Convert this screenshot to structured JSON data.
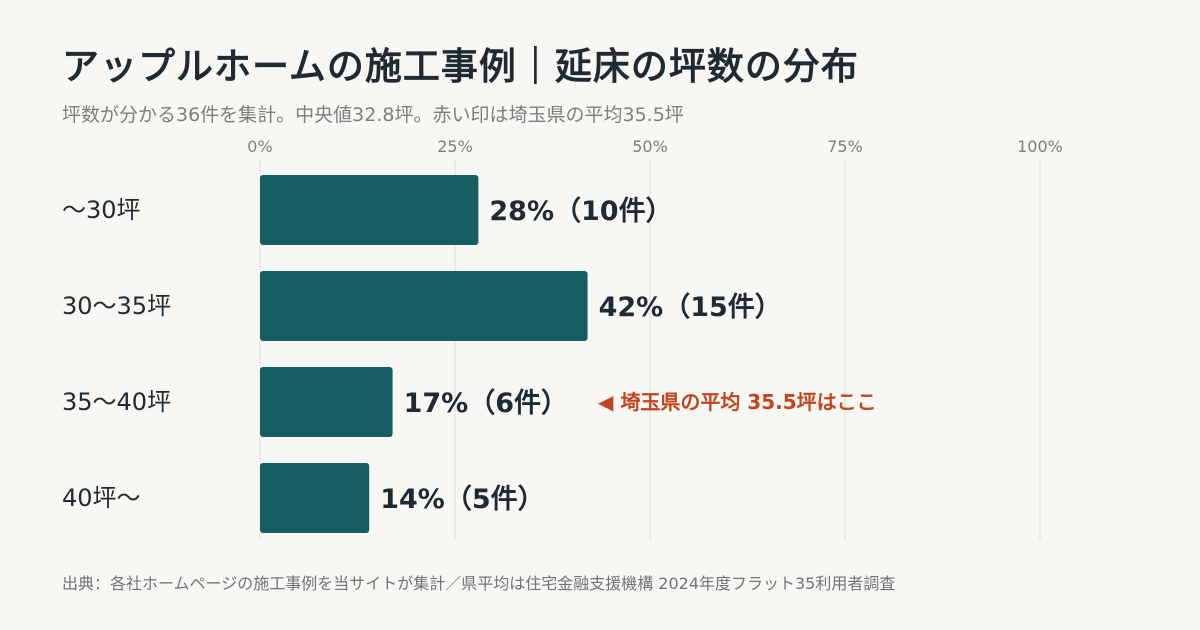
{
  "title": "アップルホームの施工事例｜延床の坪数の分布",
  "subtitle": "坪数が分かる36件を集計。中央値32.8坪。赤い印は埼玉県の平均35.5坪",
  "footer": "出典：各社ホームページの施工事例を当サイトが集計／県平均は住宅金融支援機構 2024年度フラット35利用者調査",
  "colors": {
    "bar": "#175e63",
    "accent": "#c0461f",
    "grid": "#dedcd6",
    "tick": "#7a7f84",
    "label": "#1f2a33"
  },
  "chart_data": {
    "type": "bar",
    "orientation": "horizontal",
    "categories": [
      "〜30坪",
      "30〜35坪",
      "35〜40坪",
      "40坪〜"
    ],
    "values": [
      28,
      42,
      17,
      14
    ],
    "counts": [
      10,
      15,
      6,
      5
    ],
    "data_labels": [
      "28%（10件）",
      "42%（15件）",
      "17%（6件）",
      "14%（5件）"
    ],
    "xlim": [
      0,
      100
    ],
    "xticks": [
      0,
      25,
      50,
      75,
      100
    ],
    "xtick_labels": [
      "0%",
      "25%",
      "50%",
      "75%",
      "100%"
    ],
    "grid": true,
    "annotation": {
      "category_index": 2,
      "text": "◀ 埼玉県の平均 35.5坪はここ"
    }
  }
}
